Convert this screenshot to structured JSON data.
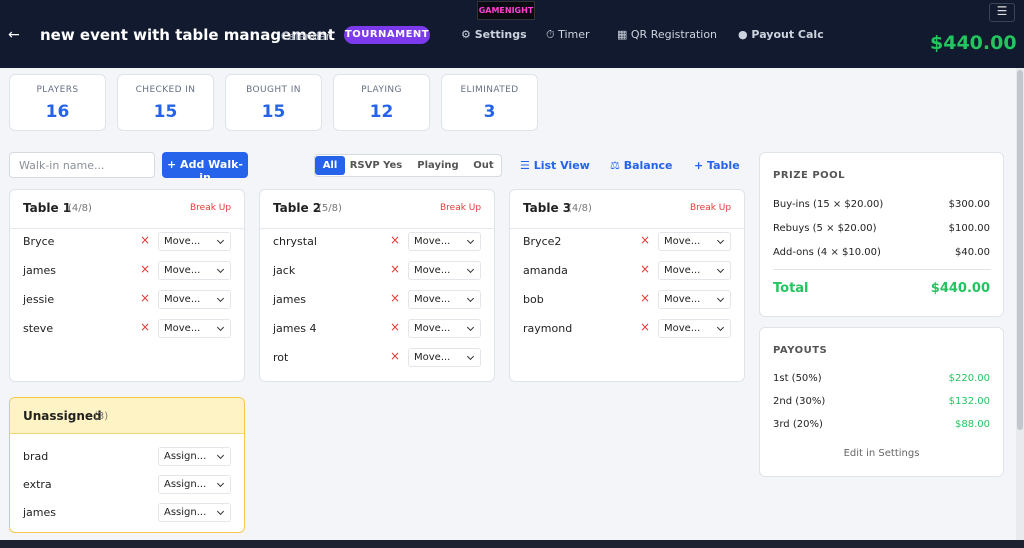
{
  "header": {
    "back": "←",
    "title": "new event with table management",
    "subtitle": "Calendar",
    "badge": "TOURNAMENT",
    "logo": "GAMENIGHT",
    "nav": [
      "⚙ Settings",
      "⏱ Timer",
      "▦ QR Registration",
      "● Payout Calc"
    ],
    "total": "$440.00",
    "menu": "☰"
  },
  "stats": [
    {
      "label": "PLAYERS",
      "value": 16
    },
    {
      "label": "CHECKED IN",
      "value": 15
    },
    {
      "label": "BOUGHT IN",
      "value": 15
    },
    {
      "label": "PLAYING",
      "value": 12
    },
    {
      "label": "ELIMINATED",
      "value": 3
    }
  ],
  "toolbar": {
    "placeholder": "Walk-in name...",
    "add": "+ Add Walk-in",
    "filters": [
      "All",
      "RSVP Yes",
      "Playing",
      "Out"
    ],
    "links": [
      "☰ List View",
      "⚖ Balance",
      "+ Table"
    ]
  },
  "tables": [
    {
      "name": "Table 1",
      "count": "(4/8)",
      "action": "Break Up",
      "players": [
        "Bryce",
        "james",
        "jessie",
        "steve"
      ],
      "select": "Move..."
    },
    {
      "name": "Table 2",
      "count": "(5/8)",
      "action": "Break Up",
      "players": [
        "chrystal",
        "jack",
        "james",
        "james 4",
        "rot"
      ],
      "select": "Move..."
    },
    {
      "name": "Table 3",
      "count": "(4/8)",
      "action": "Break Up",
      "players": [
        "Bryce2",
        "amanda",
        "bob",
        "raymond"
      ],
      "select": "Move..."
    }
  ],
  "unassigned": {
    "name": "Unassigned",
    "count": "(3)",
    "players": [
      "brad",
      "extra",
      "james"
    ],
    "select": "Assign..."
  },
  "prize_pool": {
    "title": "PRIZE POOL",
    "rows": [
      [
        "Buy-ins (15 × $20.00)",
        "$300.00"
      ],
      [
        "Rebuys (5 × $20.00)",
        "$100.00"
      ],
      [
        "Add-ons (4 × $10.00)",
        "$40.00"
      ]
    ],
    "total_label": "Total",
    "total": "$440.00"
  },
  "payouts": {
    "title": "PAYOUTS",
    "rows": [
      [
        "1st (50%)",
        "$220.00"
      ],
      [
        "2nd (30%)",
        "$132.00"
      ],
      [
        "3rd (20%)",
        "$88.00"
      ]
    ],
    "edit": "Edit in Settings"
  }
}
